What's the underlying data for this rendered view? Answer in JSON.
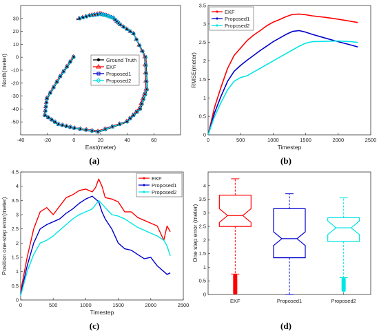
{
  "figure": {
    "captions": [
      "(a)",
      "(b)",
      "(c)",
      "(d)"
    ],
    "colors": {
      "ground_truth": "#000000",
      "ekf": "#ff0000",
      "proposed1": "#0000cc",
      "proposed2": "#00e5e5",
      "axis": "#333333"
    }
  },
  "chart_data": [
    {
      "id": "a",
      "type": "line",
      "xlabel": "East(meter)",
      "ylabel": "North(meter)",
      "xlim": [
        -40,
        80
      ],
      "ylim": [
        -60,
        40
      ],
      "xticks": [
        -40,
        -20,
        0,
        20,
        40,
        60
      ],
      "yticks": [
        -50,
        -40,
        -30,
        -20,
        -10,
        0,
        10,
        20,
        30
      ],
      "legend_position": "right",
      "legend_markers": [
        "circle",
        "triangle",
        "square",
        "diamond"
      ],
      "series": [
        {
          "name": "Ground Truth",
          "x": [
            0,
            -10,
            -20,
            -22,
            -12,
            0,
            18,
            40,
            50,
            55,
            54,
            45,
            35,
            30,
            25,
            20,
            12,
            2
          ],
          "y": [
            0,
            -15,
            -32,
            -45,
            -52,
            -55,
            -58,
            -50,
            -40,
            -25,
            0,
            18,
            25,
            30,
            32,
            33,
            32,
            29
          ]
        },
        {
          "name": "EKF",
          "x": [
            -0.5,
            -10.5,
            -20.5,
            -22,
            -11.5,
            0.5,
            18,
            39.5,
            49,
            54,
            53,
            44.5,
            34.5,
            29.5,
            24.5,
            19.5,
            11.5,
            1.5
          ],
          "y": [
            0.5,
            -14.5,
            -31.5,
            -44.5,
            -51.5,
            -54.5,
            -57,
            -49.5,
            -39.5,
            -24.5,
            0.5,
            18.5,
            25.5,
            30.5,
            32.5,
            34,
            32.5,
            29.5
          ]
        },
        {
          "name": "Proposed1",
          "x": [
            -0.3,
            -10.3,
            -20.3,
            -21.8,
            -11.8,
            0.2,
            18,
            39.7,
            49.5,
            54.5,
            53.5,
            44.7,
            34.7,
            29.7,
            24.7,
            19.7,
            11.7,
            1.7
          ],
          "y": [
            0.3,
            -14.7,
            -31.7,
            -44.7,
            -51.7,
            -54.7,
            -57.5,
            -49.7,
            -39.7,
            -24.7,
            0.3,
            18.3,
            25.3,
            30.3,
            32.3,
            33.5,
            32.3,
            29.3
          ]
        },
        {
          "name": "Proposed2",
          "x": [
            -0.2,
            -10.2,
            -20.2,
            -21.5,
            -11.6,
            0.4,
            18,
            39.8,
            49.6,
            54.6,
            53.6,
            44.8,
            34.8,
            29.8,
            24.8,
            19.8,
            11.8,
            1.8
          ],
          "y": [
            0.2,
            -14.8,
            -31.8,
            -44.8,
            -51.8,
            -54.8,
            -57.6,
            -49.8,
            -39.8,
            -24.8,
            0.2,
            18.2,
            25.2,
            30.2,
            32.2,
            33.3,
            32.2,
            29.2
          ]
        }
      ]
    },
    {
      "id": "b",
      "type": "line",
      "xlabel": "Timestep",
      "ylabel": "RMSE(meter)",
      "xlim": [
        0,
        2500
      ],
      "ylim": [
        0,
        3.5
      ],
      "xticks": [
        0,
        500,
        1000,
        1500,
        2000,
        2500
      ],
      "yticks": [
        0,
        0.5,
        1,
        1.5,
        2,
        2.5,
        3,
        3.5
      ],
      "legend_position": "top-left",
      "series": [
        {
          "name": "EKF",
          "x": [
            0,
            100,
            200,
            300,
            400,
            500,
            600,
            700,
            800,
            900,
            1000,
            1100,
            1200,
            1300,
            1400,
            1500,
            1600,
            1800,
            2000,
            2200,
            2300
          ],
          "y": [
            0,
            0.75,
            1.3,
            1.8,
            2.15,
            2.35,
            2.55,
            2.7,
            2.82,
            2.95,
            3.05,
            3.12,
            3.2,
            3.26,
            3.27,
            3.25,
            3.22,
            3.18,
            3.13,
            3.07,
            3.04
          ]
        },
        {
          "name": "Proposed1",
          "x": [
            0,
            100,
            200,
            300,
            400,
            500,
            600,
            700,
            800,
            900,
            1000,
            1100,
            1200,
            1300,
            1400,
            1500,
            1600,
            1800,
            2000,
            2200,
            2300
          ],
          "y": [
            0,
            0.6,
            1.05,
            1.45,
            1.72,
            1.88,
            2.02,
            2.15,
            2.28,
            2.4,
            2.52,
            2.62,
            2.72,
            2.8,
            2.82,
            2.78,
            2.72,
            2.62,
            2.52,
            2.43,
            2.38
          ]
        },
        {
          "name": "Proposed2",
          "x": [
            0,
            100,
            200,
            300,
            400,
            500,
            600,
            700,
            800,
            900,
            1000,
            1100,
            1200,
            1300,
            1400,
            1500,
            1600,
            1800,
            2000,
            2200,
            2300
          ],
          "y": [
            0,
            0.5,
            0.88,
            1.22,
            1.45,
            1.55,
            1.6,
            1.7,
            1.8,
            1.9,
            2.0,
            2.1,
            2.2,
            2.3,
            2.4,
            2.48,
            2.52,
            2.53,
            2.54,
            2.52,
            2.5
          ]
        }
      ]
    },
    {
      "id": "c",
      "type": "line",
      "xlabel": "Timestep",
      "ylabel": "Position one-step error(meter)",
      "xlim": [
        0,
        2500
      ],
      "ylim": [
        0,
        4.5
      ],
      "xticks": [
        0,
        500,
        1000,
        1500,
        2000,
        2500
      ],
      "yticks": [
        0,
        0.5,
        1,
        1.5,
        2,
        2.5,
        3,
        3.5,
        4,
        4.5
      ],
      "legend_position": "top-right",
      "series": [
        {
          "name": "EKF",
          "x": [
            0,
            100,
            200,
            300,
            400,
            500,
            600,
            700,
            800,
            900,
            1000,
            1100,
            1150,
            1200,
            1250,
            1300,
            1400,
            1500,
            1600,
            1700,
            1800,
            1900,
            2000,
            2100,
            2200,
            2250,
            2300
          ],
          "y": [
            0.3,
            1.5,
            2.5,
            3.1,
            3.25,
            3.0,
            3.3,
            3.6,
            3.7,
            3.85,
            3.9,
            3.8,
            3.95,
            4.25,
            4.0,
            3.6,
            3.55,
            3.45,
            3.1,
            3.1,
            2.9,
            2.8,
            2.7,
            2.6,
            2.1,
            2.6,
            2.4
          ]
        },
        {
          "name": "Proposed1",
          "x": [
            0,
            100,
            200,
            300,
            400,
            500,
            600,
            700,
            800,
            900,
            1000,
            1100,
            1200,
            1250,
            1300,
            1400,
            1500,
            1600,
            1700,
            1800,
            1900,
            2000,
            2100,
            2200,
            2250,
            2300
          ],
          "y": [
            0.2,
            1.2,
            2.0,
            2.5,
            2.65,
            2.75,
            2.85,
            3.05,
            3.2,
            3.4,
            3.55,
            3.65,
            3.45,
            3.1,
            2.85,
            2.5,
            2.0,
            1.8,
            1.75,
            1.6,
            1.45,
            1.5,
            1.2,
            1.0,
            0.9,
            0.95
          ]
        },
        {
          "name": "Proposed2",
          "x": [
            0,
            100,
            200,
            300,
            400,
            500,
            600,
            700,
            800,
            900,
            1000,
            1100,
            1150,
            1200,
            1300,
            1400,
            1500,
            1600,
            1700,
            1800,
            1900,
            2000,
            2100,
            2200,
            2250,
            2300
          ],
          "y": [
            0.15,
            1.0,
            1.6,
            2.0,
            2.1,
            2.25,
            2.45,
            2.65,
            2.85,
            3.0,
            3.1,
            3.2,
            3.35,
            3.5,
            3.25,
            3.0,
            2.95,
            2.85,
            2.7,
            2.55,
            2.45,
            2.35,
            2.25,
            2.1,
            1.9,
            1.55
          ]
        }
      ]
    },
    {
      "id": "d",
      "type": "box",
      "xlabel": "",
      "ylabel": "One step error (meter)",
      "ylim": [
        0,
        4.5
      ],
      "yticks": [
        0,
        0.5,
        1,
        1.5,
        2,
        2.5,
        3,
        3.5,
        4
      ],
      "categories": [
        "EKF",
        "Proposed1",
        "Proposed2"
      ],
      "notched": true,
      "boxes": [
        {
          "name": "EKF",
          "whisker_low": 0.75,
          "q1": 2.5,
          "median": 2.9,
          "q3": 3.65,
          "whisker_high": 4.25,
          "outliers_range": [
            0.0,
            0.75
          ]
        },
        {
          "name": "Proposed1",
          "whisker_low": 0.0,
          "q1": 1.35,
          "median": 2.05,
          "q3": 3.15,
          "whisker_high": 3.7,
          "outliers_range": []
        },
        {
          "name": "Proposed2",
          "whisker_low": 0.62,
          "q1": 1.95,
          "median": 2.45,
          "q3": 2.82,
          "whisker_high": 3.55,
          "outliers_range": [
            0.1,
            0.62
          ]
        }
      ]
    }
  ]
}
